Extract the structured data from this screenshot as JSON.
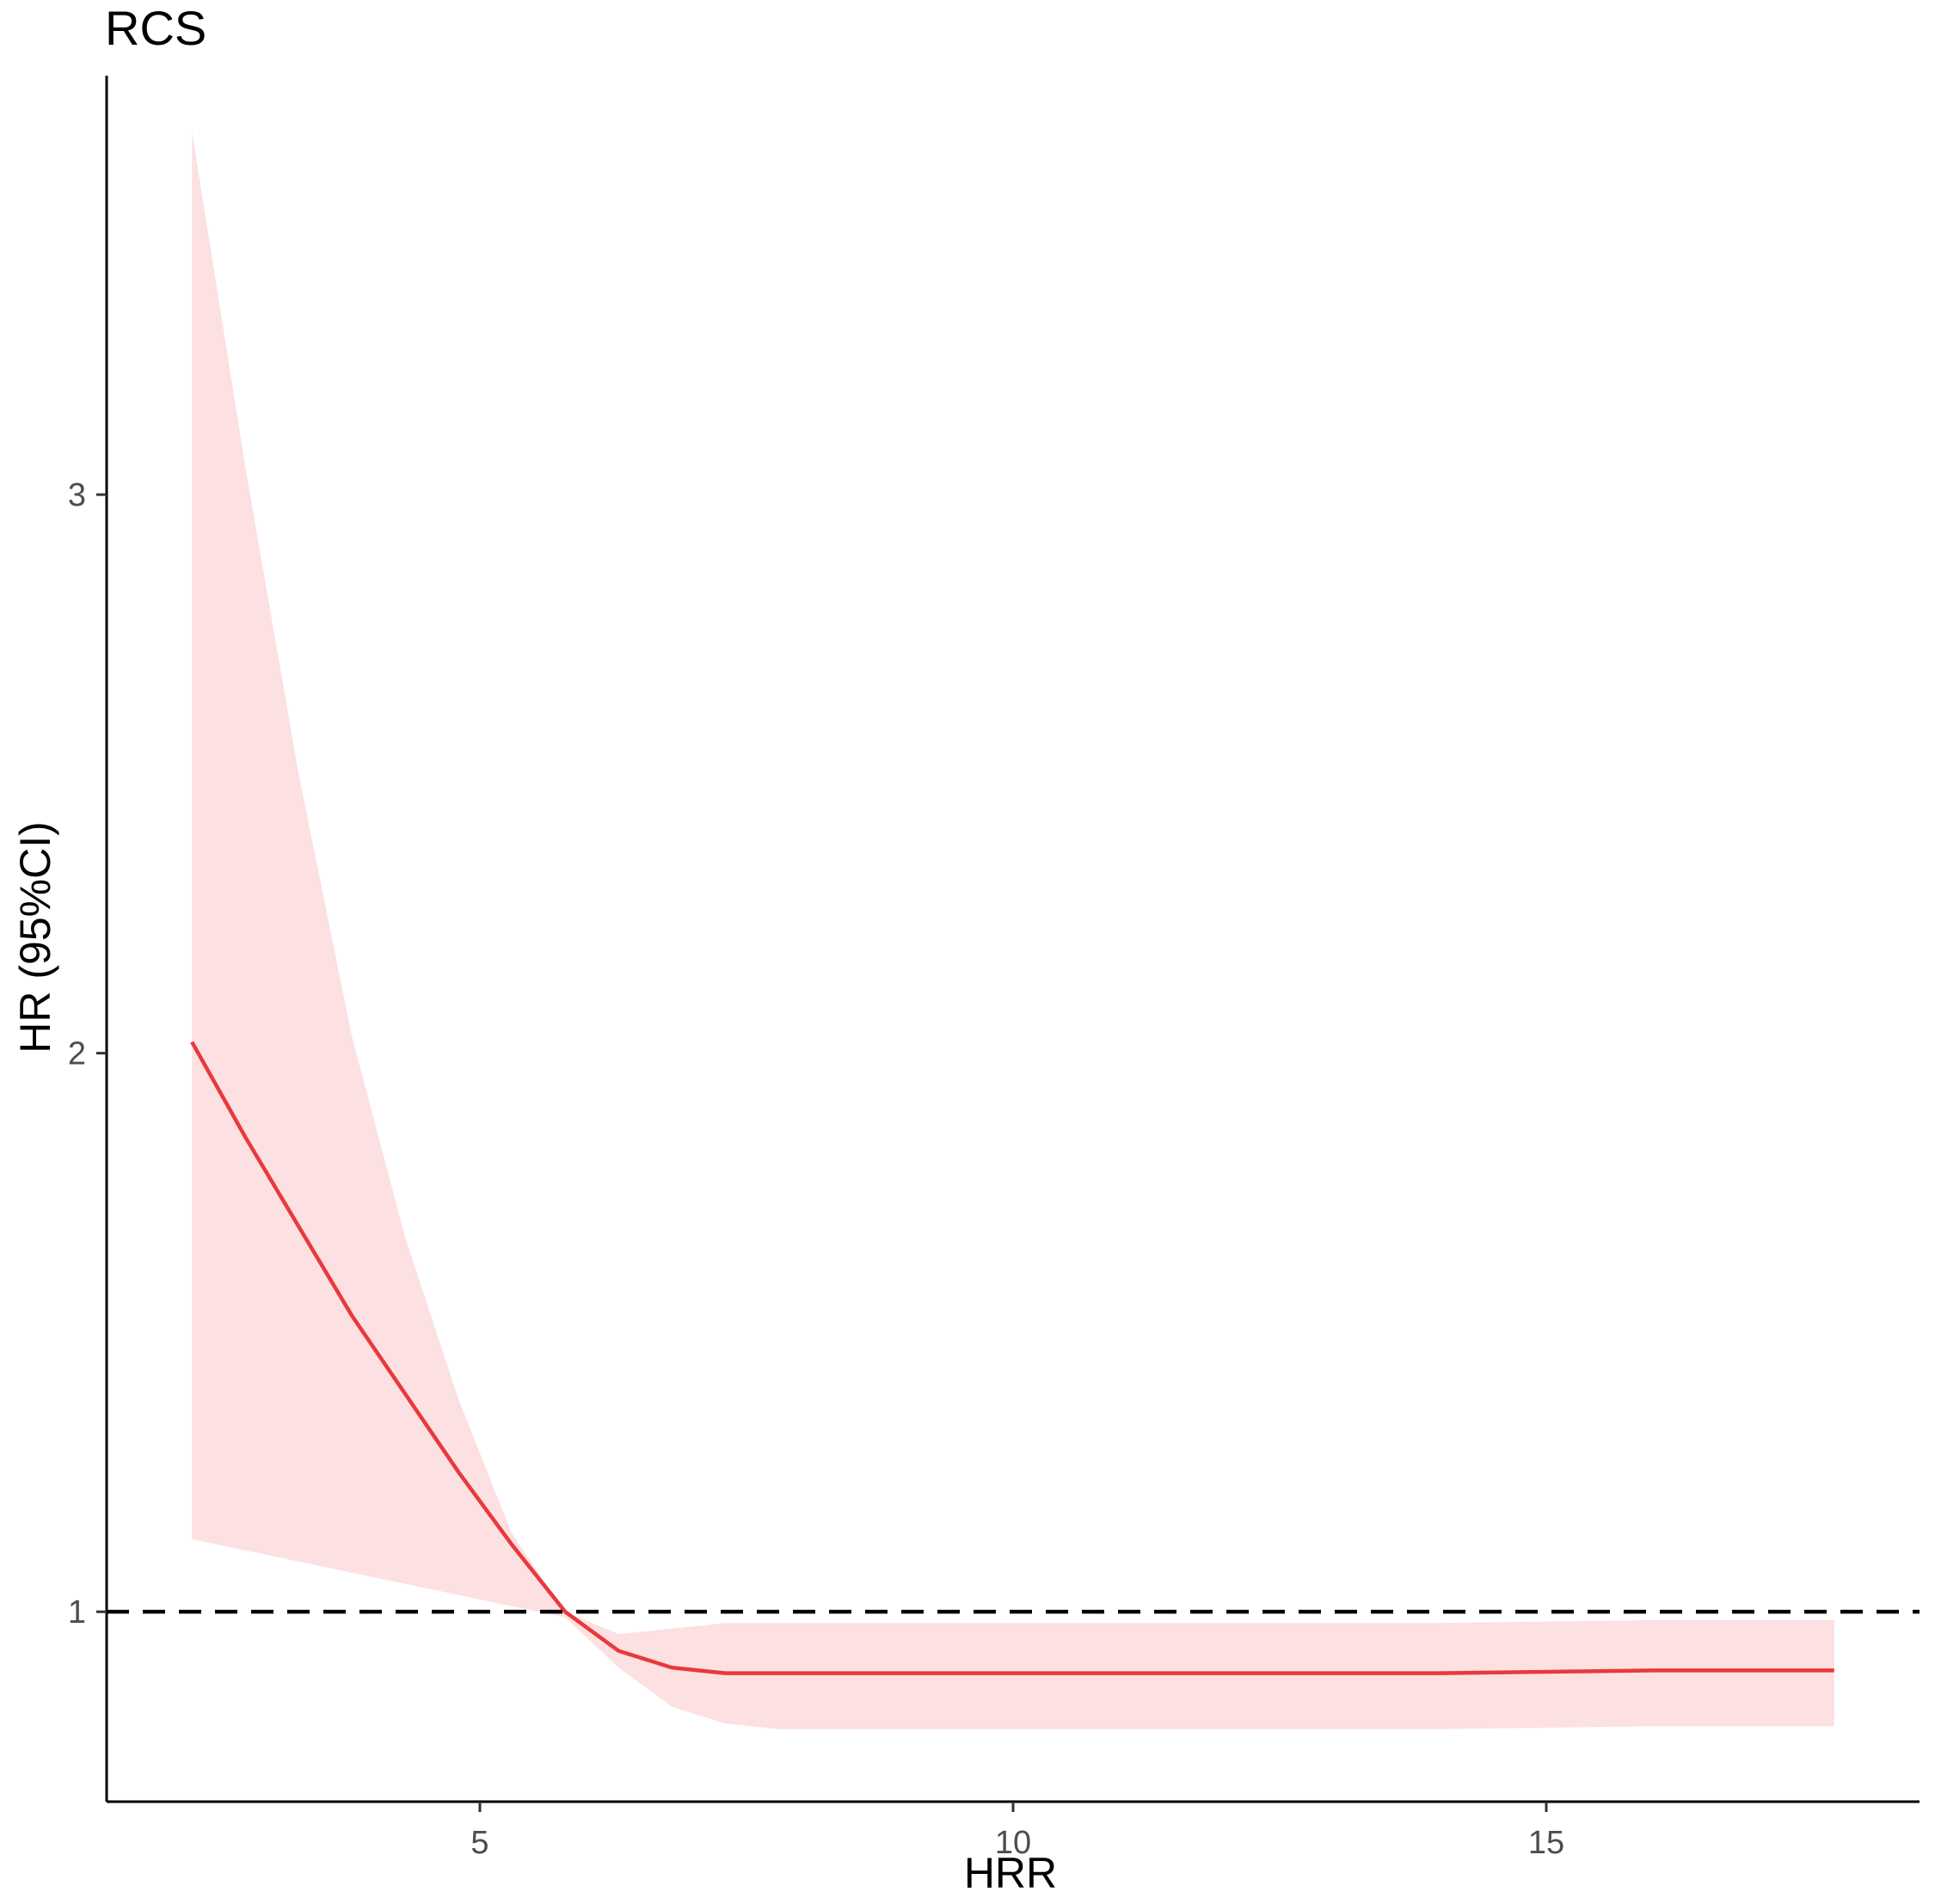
{
  "chart_data": {
    "type": "line",
    "title": "RCS",
    "xlabel": "HRR",
    "ylabel": "HR (95%CI)",
    "xlim": [
      1.5,
      18.5
    ],
    "ylim": [
      0.66,
      3.75
    ],
    "x_ticks": [
      5,
      10,
      15
    ],
    "y_ticks": [
      1,
      2,
      3
    ],
    "grid": false,
    "legend": "none",
    "reference_line": {
      "y": 1,
      "style": "dashed",
      "color": "#000000"
    },
    "colors": {
      "line": "#e8393d",
      "band": "#fde0e1"
    },
    "series": [
      {
        "x": [
          2.3,
          2.8,
          3.3,
          3.8,
          4.3,
          4.8,
          5.3,
          5.8,
          6.3,
          6.8,
          7.3,
          7.8,
          8.3,
          8.8,
          10,
          12,
          14,
          16,
          17.7
        ],
        "y": [
          2.02,
          1.85,
          1.69,
          1.53,
          1.39,
          1.25,
          1.12,
          1.0,
          0.93,
          0.9,
          0.89,
          0.89,
          0.89,
          0.89,
          0.89,
          0.89,
          0.89,
          0.895,
          0.895
        ],
        "ci_lower": [
          1.13,
          1.11,
          1.09,
          1.07,
          1.05,
          1.03,
          1.01,
          0.99,
          0.9,
          0.83,
          0.8,
          0.79,
          0.79,
          0.79,
          0.79,
          0.79,
          0.79,
          0.795,
          0.795
        ],
        "ci_upper": [
          3.65,
          3.05,
          2.5,
          2.03,
          1.67,
          1.38,
          1.14,
          1.0,
          0.96,
          0.97,
          0.98,
          0.98,
          0.98,
          0.98,
          0.98,
          0.98,
          0.98,
          0.985,
          0.985
        ]
      }
    ]
  }
}
